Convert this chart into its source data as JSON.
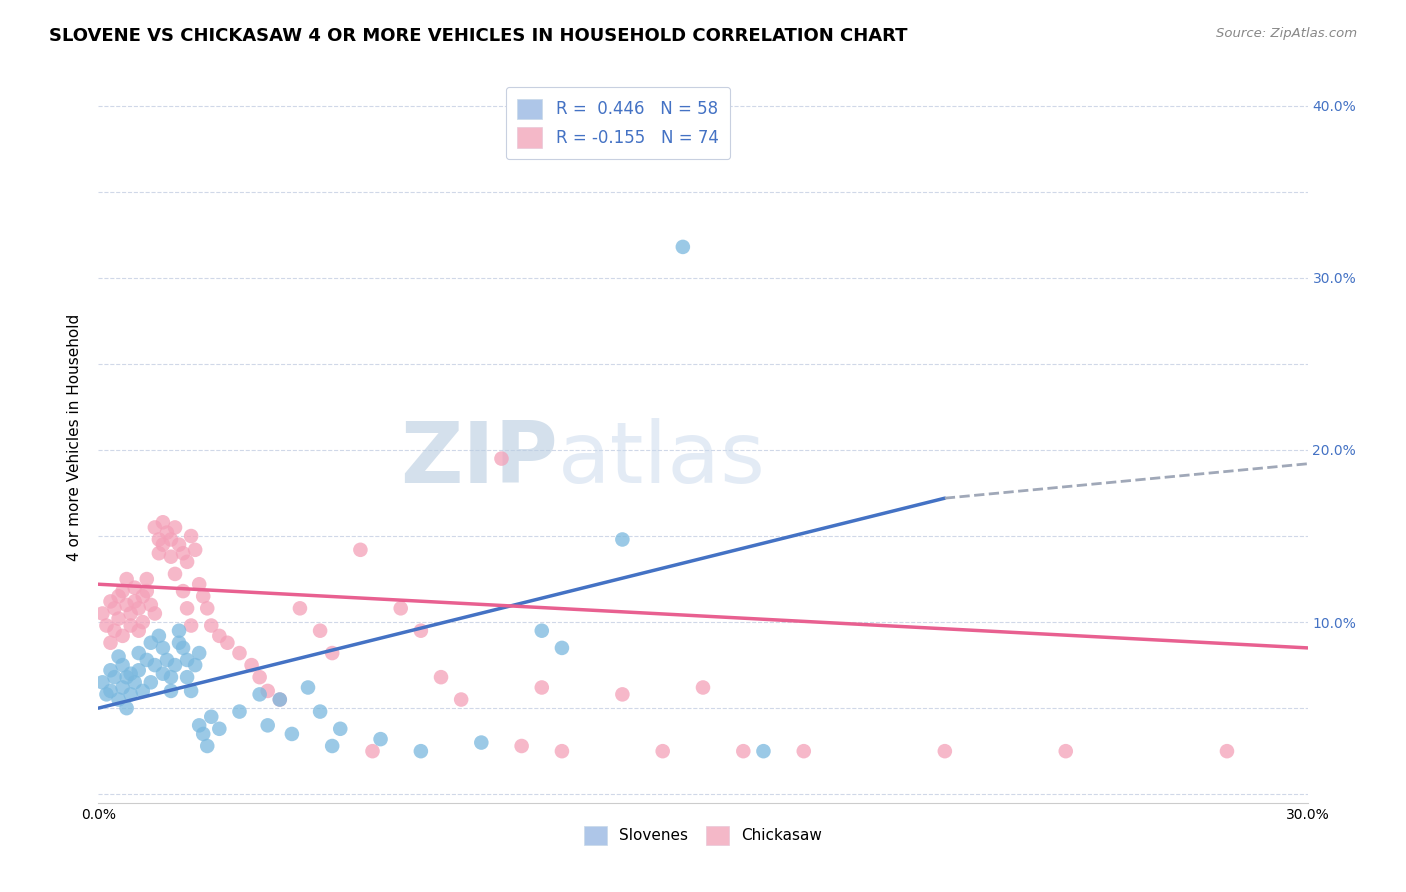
{
  "title": "SLOVENE VS CHICKASAW 4 OR MORE VEHICLES IN HOUSEHOLD CORRELATION CHART",
  "source": "Source: ZipAtlas.com",
  "ylabel": "4 or more Vehicles in Household",
  "xlim": [
    0.0,
    0.3
  ],
  "ylim": [
    -0.005,
    0.42
  ],
  "xtick_vals": [
    0.0,
    0.05,
    0.1,
    0.15,
    0.2,
    0.25,
    0.3
  ],
  "xtick_labels": [
    "0.0%",
    "",
    "",
    "",
    "",
    "",
    "30.0%"
  ],
  "ytick_vals": [
    0.0,
    0.05,
    0.1,
    0.15,
    0.2,
    0.25,
    0.3,
    0.35,
    0.4
  ],
  "ytick_right_labels": [
    "",
    "",
    "10.0%",
    "",
    "20.0%",
    "",
    "30.0%",
    "",
    "40.0%"
  ],
  "legend_label_slovene": "R =  0.446   N = 58",
  "legend_label_chickasaw": "R = -0.155   N = 74",
  "legend_color_slovene": "#aec6e8",
  "legend_color_chickasaw": "#f4b8c8",
  "slovene_scatter": [
    [
      0.001,
      0.065
    ],
    [
      0.002,
      0.058
    ],
    [
      0.003,
      0.072
    ],
    [
      0.003,
      0.06
    ],
    [
      0.004,
      0.068
    ],
    [
      0.005,
      0.055
    ],
    [
      0.005,
      0.08
    ],
    [
      0.006,
      0.062
    ],
    [
      0.006,
      0.075
    ],
    [
      0.007,
      0.05
    ],
    [
      0.007,
      0.068
    ],
    [
      0.008,
      0.07
    ],
    [
      0.008,
      0.058
    ],
    [
      0.009,
      0.065
    ],
    [
      0.01,
      0.072
    ],
    [
      0.01,
      0.082
    ],
    [
      0.011,
      0.06
    ],
    [
      0.012,
      0.078
    ],
    [
      0.013,
      0.065
    ],
    [
      0.013,
      0.088
    ],
    [
      0.014,
      0.075
    ],
    [
      0.015,
      0.092
    ],
    [
      0.016,
      0.085
    ],
    [
      0.016,
      0.07
    ],
    [
      0.017,
      0.078
    ],
    [
      0.018,
      0.068
    ],
    [
      0.018,
      0.06
    ],
    [
      0.019,
      0.075
    ],
    [
      0.02,
      0.088
    ],
    [
      0.02,
      0.095
    ],
    [
      0.021,
      0.085
    ],
    [
      0.022,
      0.078
    ],
    [
      0.022,
      0.068
    ],
    [
      0.023,
      0.06
    ],
    [
      0.024,
      0.075
    ],
    [
      0.025,
      0.082
    ],
    [
      0.025,
      0.04
    ],
    [
      0.026,
      0.035
    ],
    [
      0.027,
      0.028
    ],
    [
      0.028,
      0.045
    ],
    [
      0.03,
      0.038
    ],
    [
      0.035,
      0.048
    ],
    [
      0.04,
      0.058
    ],
    [
      0.042,
      0.04
    ],
    [
      0.045,
      0.055
    ],
    [
      0.048,
      0.035
    ],
    [
      0.052,
      0.062
    ],
    [
      0.055,
      0.048
    ],
    [
      0.058,
      0.028
    ],
    [
      0.06,
      0.038
    ],
    [
      0.07,
      0.032
    ],
    [
      0.08,
      0.025
    ],
    [
      0.095,
      0.03
    ],
    [
      0.11,
      0.095
    ],
    [
      0.115,
      0.085
    ],
    [
      0.13,
      0.148
    ],
    [
      0.145,
      0.318
    ],
    [
      0.165,
      0.025
    ]
  ],
  "chickasaw_scatter": [
    [
      0.001,
      0.105
    ],
    [
      0.002,
      0.098
    ],
    [
      0.003,
      0.112
    ],
    [
      0.003,
      0.088
    ],
    [
      0.004,
      0.108
    ],
    [
      0.004,
      0.095
    ],
    [
      0.005,
      0.115
    ],
    [
      0.005,
      0.102
    ],
    [
      0.006,
      0.118
    ],
    [
      0.006,
      0.092
    ],
    [
      0.007,
      0.11
    ],
    [
      0.007,
      0.125
    ],
    [
      0.008,
      0.105
    ],
    [
      0.008,
      0.098
    ],
    [
      0.009,
      0.112
    ],
    [
      0.009,
      0.12
    ],
    [
      0.01,
      0.108
    ],
    [
      0.01,
      0.095
    ],
    [
      0.011,
      0.115
    ],
    [
      0.011,
      0.1
    ],
    [
      0.012,
      0.125
    ],
    [
      0.012,
      0.118
    ],
    [
      0.013,
      0.11
    ],
    [
      0.014,
      0.105
    ],
    [
      0.014,
      0.155
    ],
    [
      0.015,
      0.148
    ],
    [
      0.015,
      0.14
    ],
    [
      0.016,
      0.158
    ],
    [
      0.016,
      0.145
    ],
    [
      0.017,
      0.152
    ],
    [
      0.018,
      0.148
    ],
    [
      0.018,
      0.138
    ],
    [
      0.019,
      0.155
    ],
    [
      0.019,
      0.128
    ],
    [
      0.02,
      0.145
    ],
    [
      0.021,
      0.14
    ],
    [
      0.021,
      0.118
    ],
    [
      0.022,
      0.135
    ],
    [
      0.022,
      0.108
    ],
    [
      0.023,
      0.15
    ],
    [
      0.023,
      0.098
    ],
    [
      0.024,
      0.142
    ],
    [
      0.025,
      0.122
    ],
    [
      0.026,
      0.115
    ],
    [
      0.027,
      0.108
    ],
    [
      0.028,
      0.098
    ],
    [
      0.03,
      0.092
    ],
    [
      0.032,
      0.088
    ],
    [
      0.035,
      0.082
    ],
    [
      0.038,
      0.075
    ],
    [
      0.04,
      0.068
    ],
    [
      0.042,
      0.06
    ],
    [
      0.045,
      0.055
    ],
    [
      0.05,
      0.108
    ],
    [
      0.055,
      0.095
    ],
    [
      0.058,
      0.082
    ],
    [
      0.065,
      0.142
    ],
    [
      0.068,
      0.025
    ],
    [
      0.075,
      0.108
    ],
    [
      0.08,
      0.095
    ],
    [
      0.085,
      0.068
    ],
    [
      0.09,
      0.055
    ],
    [
      0.1,
      0.195
    ],
    [
      0.105,
      0.028
    ],
    [
      0.11,
      0.062
    ],
    [
      0.115,
      0.025
    ],
    [
      0.13,
      0.058
    ],
    [
      0.14,
      0.025
    ],
    [
      0.15,
      0.062
    ],
    [
      0.16,
      0.025
    ],
    [
      0.175,
      0.025
    ],
    [
      0.21,
      0.025
    ],
    [
      0.24,
      0.025
    ],
    [
      0.28,
      0.025
    ]
  ],
  "slovene_color": "#7ab8de",
  "chickasaw_color": "#f4a0b8",
  "slovene_line_color": "#4472c4",
  "chickasaw_line_color": "#e86090",
  "slovene_line": {
    "x0": 0.0,
    "y0": 0.05,
    "x1": 0.21,
    "y1": 0.172
  },
  "slovene_line_ext": {
    "x0": 0.21,
    "y0": 0.172,
    "x1": 0.3,
    "y1": 0.192
  },
  "chickasaw_line": {
    "x0": 0.0,
    "y0": 0.122,
    "x1": 0.3,
    "y1": 0.085
  },
  "watermark_zip": "ZIP",
  "watermark_atlas": "atlas",
  "background_color": "#ffffff",
  "grid_color": "#d0d8e8",
  "title_fontsize": 13,
  "label_fontsize": 11,
  "tick_fontsize": 10,
  "legend_fontsize": 12,
  "scatter_size": 110
}
